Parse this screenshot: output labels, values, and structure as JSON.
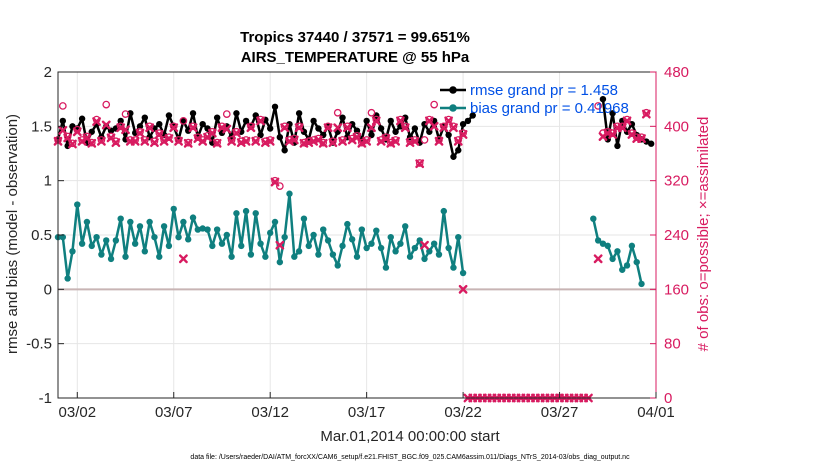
{
  "chart_data": {
    "type": "line",
    "title_line1": "Tropics 37440 / 37571 = 99.651%",
    "title_line2": "AIRS_TEMPERATURE @ 55 hPa",
    "xlabel": "Mar.01,2014 00:00:00 start",
    "ylabel_left": "rmse and bias (model - observation)",
    "ylabel_right": "# of obs: o=possible; ×=assimilated",
    "xlim": [
      0,
      31
    ],
    "ylim_left": [
      -1,
      2
    ],
    "ylim_right": [
      0,
      480
    ],
    "x_ticks": [
      {
        "x": 1,
        "label": "03/02"
      },
      {
        "x": 6,
        "label": "03/07"
      },
      {
        "x": 11,
        "label": "03/12"
      },
      {
        "x": 16,
        "label": "03/17"
      },
      {
        "x": 21,
        "label": "03/22"
      },
      {
        "x": 26,
        "label": "03/27"
      },
      {
        "x": 31,
        "label": "04/01"
      }
    ],
    "y_ticks_left": [
      "-1",
      "-0.5",
      "0",
      "0.5",
      "1",
      "1.5",
      "2"
    ],
    "y_ticks_right": [
      "0",
      "80",
      "160",
      "240",
      "320",
      "400",
      "480"
    ],
    "legend": [
      {
        "label": "rmse grand pr = 1.458",
        "color": "#000000"
      },
      {
        "label": "bias grand pr = 0.41968",
        "color": "#0f7f7f"
      }
    ],
    "footer_text": "data file: /Users/raeder/DAI/ATM_forcXX/CAM6_setup/f.e21.FHIST_BGC.f09_025.CAM6assim.011/Diags_NTrS_2014-03/obs_diag_output.nc",
    "colors": {
      "rmse": "#000000",
      "bias": "#0f7f7f",
      "obs": "#d81b60",
      "zero_line": "#c8b4b4",
      "grid": "#e6e6e6"
    },
    "rmse_segments": [
      {
        "x": [
          0.0,
          0.25,
          0.5,
          0.75,
          1.0,
          1.25,
          1.5,
          1.75,
          2.0,
          2.25,
          2.5,
          2.75,
          3.0,
          3.25,
          3.5,
          3.75,
          4.0,
          4.25,
          4.5,
          4.75,
          5.0,
          5.25,
          5.5,
          5.75,
          6.0,
          6.25,
          6.5,
          6.75,
          7.0,
          7.25,
          7.5,
          7.75,
          8.0,
          8.25,
          8.5,
          8.75,
          9.0,
          9.25,
          9.5,
          9.75,
          10.0,
          10.25,
          10.5,
          10.75,
          11.0,
          11.25,
          11.5,
          11.75,
          12.0,
          12.25,
          12.5,
          12.75,
          13.0,
          13.25,
          13.5,
          13.75,
          14.0,
          14.25,
          14.5,
          14.75,
          15.0,
          15.25,
          15.5,
          15.75,
          16.0,
          16.25,
          16.5,
          16.75,
          17.0,
          17.25,
          17.5,
          17.75,
          18.0,
          18.25,
          18.5,
          18.75,
          19.0,
          19.25,
          19.5,
          19.75,
          20.0,
          20.25,
          20.5,
          20.75,
          21.0
        ],
        "y": [
          1.38,
          1.55,
          1.32,
          1.5,
          1.48,
          1.57,
          1.35,
          1.45,
          1.52,
          1.4,
          1.5,
          1.46,
          1.48,
          1.55,
          1.38,
          1.62,
          1.44,
          1.5,
          1.58,
          1.4,
          1.48,
          1.52,
          1.42,
          1.6,
          1.5,
          1.38,
          1.55,
          1.46,
          1.62,
          1.4,
          1.52,
          1.48,
          1.35,
          1.58,
          1.44,
          1.5,
          1.4,
          1.62,
          1.45,
          1.55,
          1.5,
          1.6,
          1.42,
          1.56,
          1.48,
          1.68,
          1.4,
          1.28,
          1.52,
          1.35,
          1.62,
          1.45,
          1.38,
          1.55,
          1.48,
          1.42,
          1.5,
          1.35,
          1.45,
          1.58,
          1.4,
          1.52,
          1.46,
          1.38,
          1.55,
          1.42,
          1.6,
          1.48,
          1.38,
          1.55,
          1.45,
          1.5,
          1.58,
          1.4,
          1.48,
          1.35,
          1.52,
          1.45,
          1.55,
          1.38,
          1.5,
          1.42,
          1.22,
          1.28,
          1.52
        ]
      },
      {
        "x": [
          21.25,
          21.5
        ],
        "y": [
          1.55,
          1.6
        ]
      },
      {
        "x": [
          28.25,
          28.5,
          28.75,
          29.0,
          29.25,
          29.5,
          29.75,
          30.0,
          30.25,
          30.5,
          30.75
        ],
        "y": [
          1.75,
          1.38,
          1.62,
          1.32,
          1.55,
          1.45,
          1.52,
          1.42,
          1.38,
          1.36,
          1.34
        ]
      }
    ],
    "bias_segments": [
      {
        "x": [
          0.0,
          0.25,
          0.5,
          0.75,
          1.0,
          1.25,
          1.5,
          1.75,
          2.0,
          2.25,
          2.5,
          2.75,
          3.0,
          3.25,
          3.5,
          3.75,
          4.0,
          4.25,
          4.5,
          4.75,
          5.0,
          5.25,
          5.5,
          5.75,
          6.0,
          6.25,
          6.5,
          6.75,
          7.0,
          7.25,
          7.5,
          7.75,
          8.0,
          8.25,
          8.5,
          8.75,
          9.0,
          9.25,
          9.5,
          9.75,
          10.0,
          10.25,
          10.5,
          10.75,
          11.0,
          11.25,
          11.5,
          11.75,
          12.0,
          12.25,
          12.5,
          12.75,
          13.0,
          13.25,
          13.5,
          13.75,
          14.0,
          14.25,
          14.5,
          14.75,
          15.0,
          15.25,
          15.5,
          15.75,
          16.0,
          16.25,
          16.5,
          16.75,
          17.0,
          17.25,
          17.5,
          17.75,
          18.0,
          18.25,
          18.5,
          18.75,
          19.0,
          19.25,
          19.5,
          19.75,
          20.0,
          20.25,
          20.5,
          20.75,
          21.0
        ],
        "y": [
          0.48,
          0.48,
          0.1,
          0.35,
          0.78,
          0.42,
          0.62,
          0.4,
          0.48,
          0.32,
          0.45,
          0.28,
          0.45,
          0.65,
          0.3,
          0.62,
          0.42,
          0.58,
          0.35,
          0.62,
          0.48,
          0.3,
          0.58,
          0.4,
          0.74,
          0.48,
          0.62,
          0.46,
          0.66,
          0.55,
          0.56,
          0.55,
          0.4,
          0.55,
          0.42,
          0.5,
          0.3,
          0.7,
          0.4,
          0.72,
          0.32,
          0.7,
          0.42,
          0.3,
          0.52,
          0.62,
          0.25,
          0.48,
          0.88,
          0.3,
          0.35,
          0.65,
          0.4,
          0.5,
          0.32,
          0.55,
          0.45,
          0.32,
          0.22,
          0.4,
          0.6,
          0.46,
          0.3,
          0.55,
          0.38,
          0.42,
          0.54,
          0.38,
          0.2,
          0.48,
          0.35,
          0.42,
          0.58,
          0.3,
          0.38,
          0.45,
          0.28,
          0.35,
          0.42,
          0.32,
          0.72,
          0.38,
          0.2,
          0.48,
          0.15
        ]
      },
      {
        "x": [
          27.75,
          28.0,
          28.25,
          28.5,
          28.75,
          29.0,
          29.25,
          29.5,
          29.75,
          30.0,
          30.25
        ],
        "y": [
          0.65,
          0.45,
          0.42,
          0.4,
          0.28,
          0.35,
          0.18,
          0.22,
          0.4,
          0.25,
          0.05
        ]
      }
    ],
    "obs_possible_segments": [
      {
        "x": [
          0.0,
          0.25,
          0.5,
          0.75,
          1.0,
          1.25,
          1.5,
          1.75,
          2.0,
          2.25,
          2.5,
          2.75,
          3.0,
          3.25,
          3.5,
          3.75,
          4.0,
          4.25,
          4.5,
          4.75,
          5.0,
          5.25,
          5.5,
          5.75,
          6.0,
          6.25,
          6.5,
          6.75,
          7.0,
          7.25,
          7.5,
          7.75,
          8.0,
          8.25,
          8.5,
          8.75,
          9.0,
          9.25,
          9.5,
          9.75,
          10.0,
          10.25,
          10.5,
          10.75,
          11.0,
          11.25,
          11.5,
          11.75,
          12.0,
          12.25,
          12.5,
          12.75,
          13.0,
          13.25,
          13.5,
          13.75,
          14.0,
          14.25,
          14.5,
          14.75,
          15.0,
          15.25,
          15.5,
          15.75,
          16.0,
          16.25,
          16.5,
          16.75,
          17.0,
          17.25,
          17.5,
          17.75,
          18.0,
          18.25,
          18.5,
          18.75,
          19.0,
          19.25,
          19.5,
          19.75,
          20.0,
          20.25,
          20.5,
          20.75,
          21.0
        ],
        "y": [
          380,
          430,
          385,
          375,
          395,
          380,
          385,
          376,
          410,
          380,
          432,
          385,
          378,
          400,
          418,
          380,
          380,
          392,
          380,
          400,
          378,
          390,
          380,
          384,
          400,
          380,
          408,
          376,
          400,
          384,
          380,
          386,
          392,
          376,
          400,
          418,
          380,
          392,
          378,
          380,
          400,
          380,
          410,
          378,
          380,
          320,
          312,
          400,
          380,
          382,
          400,
          376,
          378,
          380,
          382,
          376,
          400,
          378,
          420,
          380,
          400,
          382,
          386,
          376,
          380,
          420,
          410,
          380,
          384,
          376,
          380,
          410,
          400,
          378,
          380,
          346,
          380,
          410,
          432,
          380,
          400,
          410,
          400,
          380,
          390
        ]
      },
      {
        "x": [
          28.0,
          28.25,
          28.5,
          28.75,
          29.0,
          29.25,
          29.5,
          29.75,
          30.0,
          30.25,
          30.5
        ],
        "y": [
          430,
          390,
          392,
          390,
          400,
          400,
          410,
          390,
          384,
          384,
          420
        ]
      }
    ],
    "obs_assimilated_segments": [
      {
        "x": [
          0.0,
          0.25,
          0.5,
          0.75,
          1.0,
          1.25,
          1.5,
          1.75,
          2.0,
          2.25,
          2.5,
          2.75,
          3.0,
          3.25,
          3.5,
          3.75,
          4.0,
          4.25,
          4.5,
          4.75,
          5.0,
          5.25,
          5.5,
          5.75,
          6.0,
          6.25,
          6.5,
          6.75,
          7.0,
          7.25,
          7.5,
          7.75,
          8.0,
          8.25,
          8.5,
          8.75,
          9.0,
          9.25,
          9.5,
          9.75,
          10.0,
          10.25,
          10.5,
          10.75,
          11.0,
          11.25,
          11.5,
          11.75,
          12.0,
          12.25,
          12.5,
          12.75,
          13.0,
          13.25,
          13.5,
          13.75,
          14.0,
          14.25,
          14.5,
          14.75,
          15.0,
          15.25,
          15.5,
          15.75,
          16.0,
          16.25,
          16.5,
          16.75,
          17.0,
          17.25,
          17.5,
          17.75,
          18.0,
          18.25,
          18.5,
          18.75,
          19.0,
          19.25,
          19.5,
          19.75,
          20.0,
          20.25,
          20.5,
          20.75,
          21.0
        ],
        "y": [
          378,
          394,
          383,
          374,
          392,
          378,
          383,
          375,
          407,
          378,
          402,
          383,
          376,
          398,
          395,
          378,
          378,
          390,
          378,
          398,
          376,
          388,
          378,
          382,
          398,
          378,
          205,
          375,
          398,
          382,
          378,
          384,
          390,
          375,
          398,
          396,
          378,
          390,
          376,
          378,
          398,
          378,
          408,
          376,
          378,
          318,
          225,
          398,
          378,
          380,
          398,
          375,
          376,
          378,
          380,
          375,
          398,
          376,
          398,
          378,
          398,
          380,
          384,
          375,
          378,
          398,
          408,
          378,
          382,
          375,
          378,
          408,
          398,
          376,
          378,
          345,
          225,
          408,
          400,
          378,
          398,
          408,
          398,
          378,
          388
        ]
      },
      {
        "x": [
          21.25,
          21.5,
          21.75,
          22.0,
          22.25,
          22.5,
          22.75,
          23.0,
          23.25,
          23.5,
          23.75,
          24.0,
          24.25,
          24.5,
          24.75,
          25.0,
          25.25,
          25.5,
          25.75,
          26.0,
          26.25,
          26.5,
          26.75,
          27.0,
          27.25,
          27.5
        ],
        "y": [
          0,
          0,
          0,
          0,
          0,
          0,
          0,
          0,
          0,
          0,
          0,
          0,
          0,
          0,
          0,
          0,
          0,
          0,
          0,
          0,
          0,
          0,
          0,
          0,
          0,
          0
        ]
      },
      {
        "x": [
          28.0,
          28.25,
          28.5,
          28.75,
          29.0,
          29.25,
          29.5,
          29.75,
          30.0,
          30.25,
          30.5
        ],
        "y": [
          205,
          385,
          390,
          388,
          398,
          398,
          408,
          388,
          382,
          382,
          418
        ]
      }
    ],
    "obs_assimilated_isolated": [
      {
        "x": 21.0,
        "y": 160
      }
    ]
  }
}
